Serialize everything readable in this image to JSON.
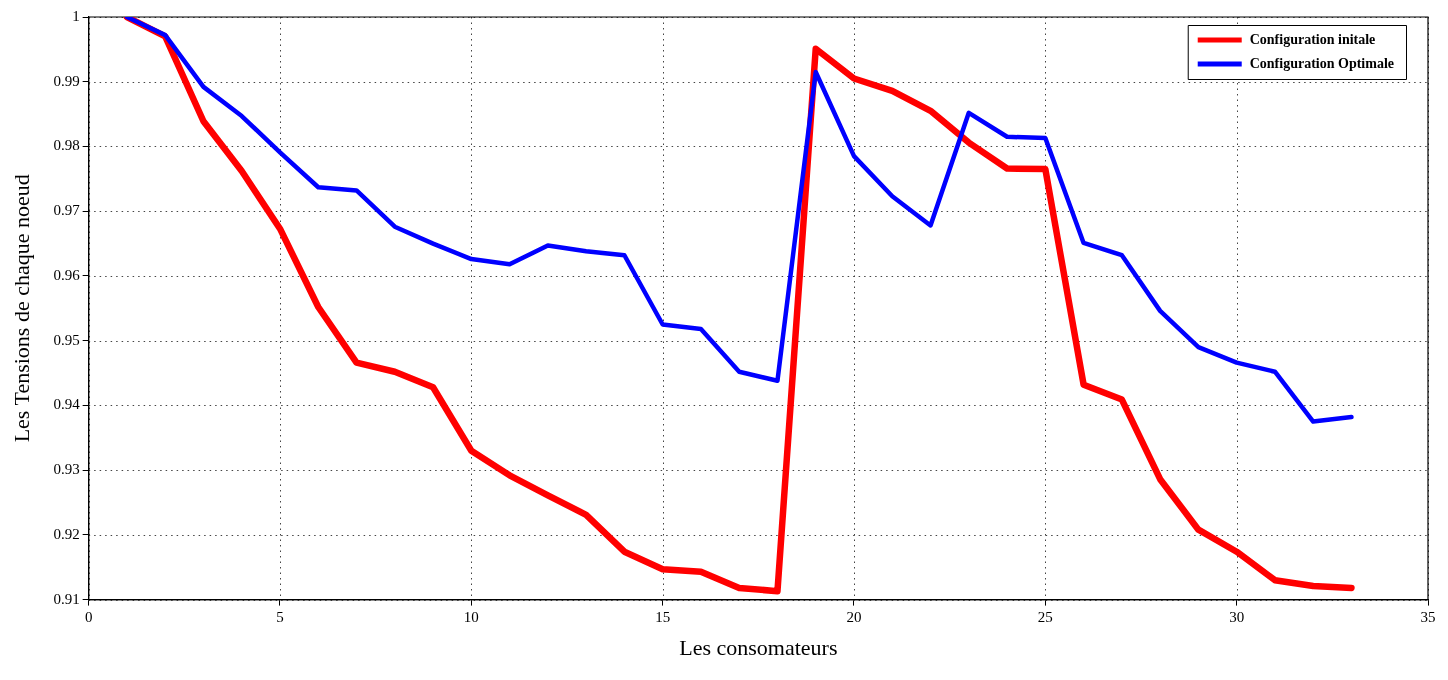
{
  "chart_data": {
    "type": "line",
    "xlabel": "Les consomateurs",
    "ylabel": "Les Tensions de chaque noeud",
    "x": [
      1,
      2,
      3,
      4,
      5,
      6,
      7,
      8,
      9,
      10,
      11,
      12,
      13,
      14,
      15,
      16,
      17,
      18,
      19,
      20,
      21,
      22,
      23,
      24,
      25,
      26,
      27,
      28,
      29,
      30,
      31,
      32,
      33
    ],
    "series": [
      {
        "name": "Configuration initale",
        "color": "#ff0000",
        "values": [
          1.0,
          0.997,
          0.9839,
          0.9762,
          0.9673,
          0.9552,
          0.9466,
          0.9452,
          0.9428,
          0.933,
          0.9292,
          0.9261,
          0.9231,
          0.9174,
          0.9147,
          0.9143,
          0.9118,
          0.9113,
          0.9951,
          0.9905,
          0.9886,
          0.9855,
          0.9806,
          0.9766,
          0.9765,
          0.9432,
          0.9409,
          0.9286,
          0.9208,
          0.9174,
          0.913,
          0.9121,
          0.9118
        ]
      },
      {
        "name": "Configuration Optimale",
        "color": "#0000ff",
        "values": [
          1.0,
          0.9972,
          0.9892,
          0.9847,
          0.9791,
          0.9737,
          0.9732,
          0.9676,
          0.965,
          0.9626,
          0.9618,
          0.9647,
          0.9638,
          0.9632,
          0.9525,
          0.9518,
          0.9452,
          0.9438,
          0.9915,
          0.9785,
          0.9723,
          0.9678,
          0.9852,
          0.9815,
          0.9813,
          0.9651,
          0.9632,
          0.9546,
          0.949,
          0.9466,
          0.9452,
          0.9375,
          0.9382
        ]
      }
    ],
    "xlim": [
      0,
      35
    ],
    "xticks": [
      0,
      5,
      10,
      15,
      20,
      25,
      30,
      35
    ],
    "ylim": [
      0.91,
      1
    ],
    "yticks": [
      0.91,
      0.92,
      0.93,
      0.94,
      0.95,
      0.96,
      0.97,
      0.98,
      0.99,
      1
    ],
    "grid": true,
    "legend": "top right",
    "marker": "none",
    "line_style": "solid"
  }
}
